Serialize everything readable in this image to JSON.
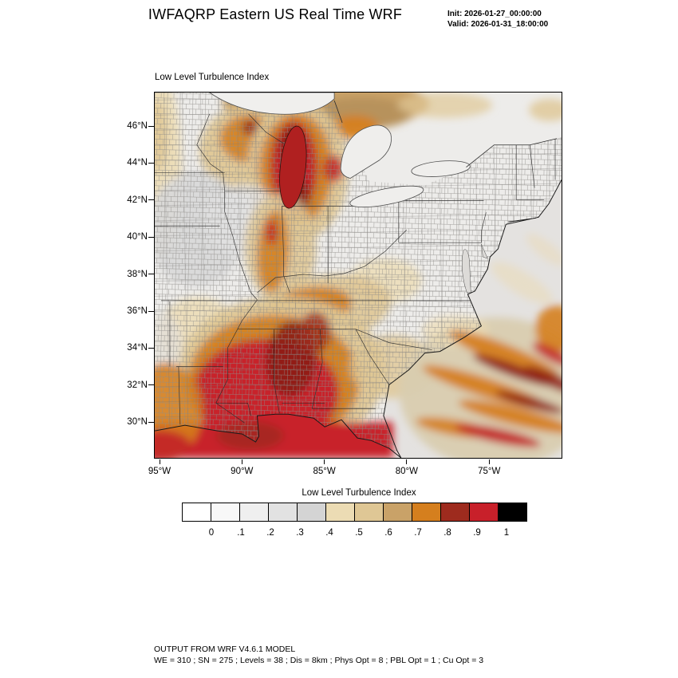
{
  "header": {
    "title": "IWFAQRP Eastern US Real Time WRF",
    "init": "Init: 2026-01-27_00:00:00",
    "valid": "Valid: 2026-01-31_18:00:00"
  },
  "map": {
    "field_label": "Low Level Turbulence Index",
    "lat_ticks": [
      "46°N",
      "44°N",
      "42°N",
      "40°N",
      "38°N",
      "36°N",
      "34°N",
      "32°N",
      "30°N"
    ],
    "lon_ticks": [
      "95°W",
      "90°W",
      "85°W",
      "80°W",
      "75°W"
    ]
  },
  "colorbar": {
    "title": "Low Level Turbulence Index",
    "tick_labels": [
      "0",
      ".1",
      ".2",
      ".3",
      ".4",
      ".5",
      ".6",
      ".7",
      ".8",
      ".9",
      "1"
    ],
    "colors": [
      "#ffffff",
      "#f8f8f8",
      "#efefef",
      "#e2e2e2",
      "#d4d4d4",
      "#ecdcb4",
      "#dfc795",
      "#c9a268",
      "#d57f1e",
      "#9e2b1e",
      "#c8202a",
      "#000000"
    ]
  },
  "footer": {
    "line1": "OUTPUT FROM WRF V4.6.1 MODEL",
    "line2": "WE = 310 ; SN = 275 ; Levels = 38 ; Dis = 8km ; Phys Opt = 8 ; PBL Opt = 1 ; Cu Opt = 3"
  }
}
